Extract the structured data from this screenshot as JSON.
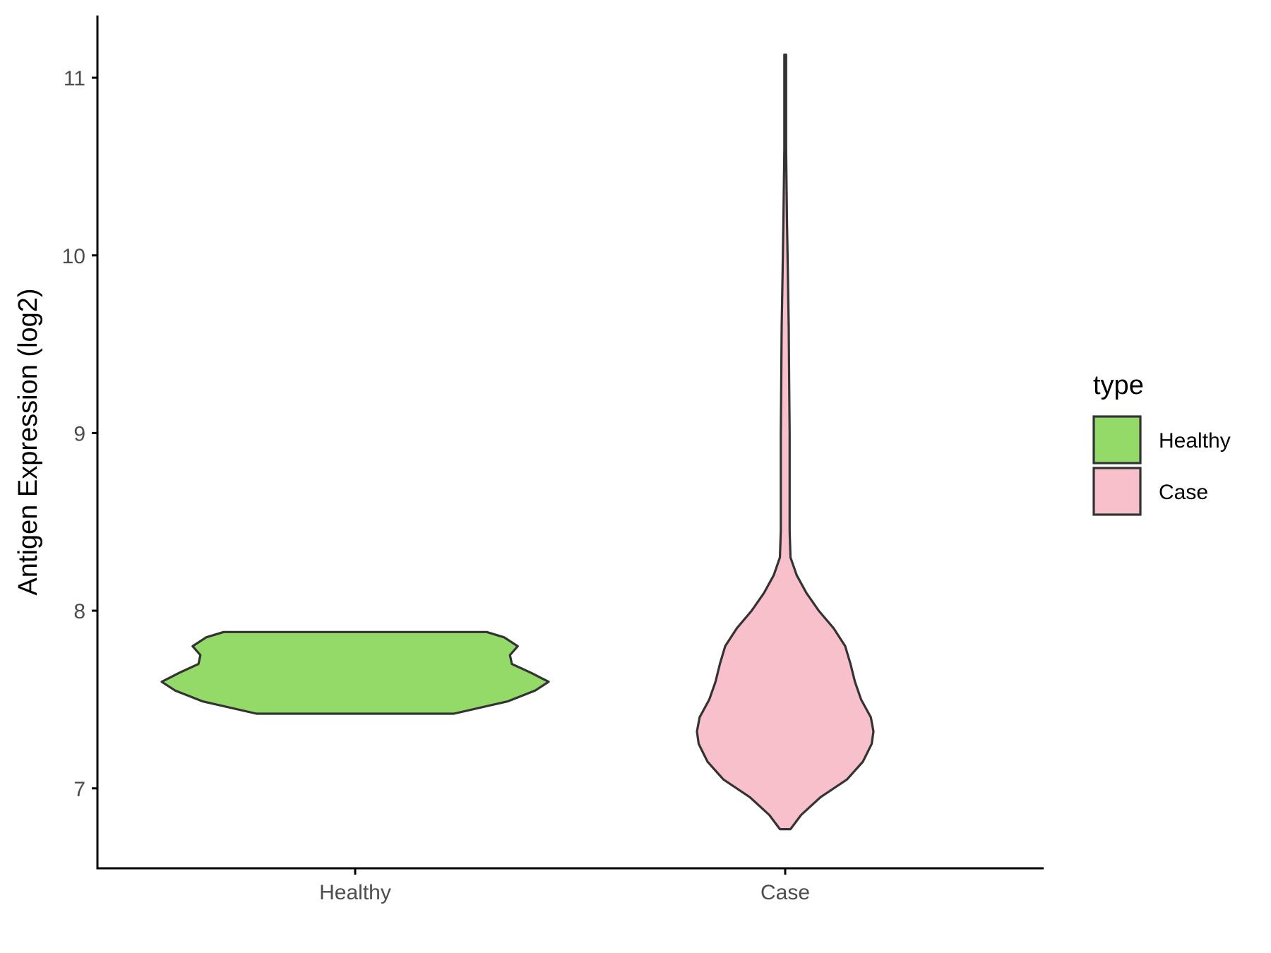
{
  "chart_data": {
    "type": "violin",
    "title": "",
    "xlabel": "",
    "ylabel": "Antigen Expression (log2)",
    "ylim": [
      6.55,
      11.35
    ],
    "yticks": [
      7,
      8,
      9,
      10,
      11
    ],
    "categories": [
      "Healthy",
      "Case"
    ],
    "legend": {
      "title": "type",
      "position": "right",
      "items": [
        {
          "label": "Healthy",
          "color": "#93DA69"
        },
        {
          "label": "Case",
          "color": "#F8C0CB"
        }
      ]
    },
    "grid": false,
    "series": [
      {
        "name": "Healthy",
        "color": "#93DA69",
        "min": 7.42,
        "max": 7.88,
        "density": [
          [
            7.42,
            0.51
          ],
          [
            7.49,
            0.79
          ],
          [
            7.55,
            0.93
          ],
          [
            7.6,
            1.0
          ],
          [
            7.65,
            0.91
          ],
          [
            7.7,
            0.81
          ],
          [
            7.75,
            0.8
          ],
          [
            7.8,
            0.84
          ],
          [
            7.85,
            0.77
          ],
          [
            7.88,
            0.68
          ]
        ]
      },
      {
        "name": "Case",
        "color": "#F8C0CB",
        "min": 6.77,
        "max": 11.13,
        "density": [
          [
            6.77,
            0.06
          ],
          [
            6.85,
            0.18
          ],
          [
            6.95,
            0.4
          ],
          [
            7.05,
            0.7
          ],
          [
            7.15,
            0.88
          ],
          [
            7.25,
            0.98
          ],
          [
            7.32,
            1.0
          ],
          [
            7.4,
            0.97
          ],
          [
            7.5,
            0.86
          ],
          [
            7.6,
            0.79
          ],
          [
            7.7,
            0.74
          ],
          [
            7.8,
            0.68
          ],
          [
            7.9,
            0.55
          ],
          [
            8.0,
            0.38
          ],
          [
            8.1,
            0.24
          ],
          [
            8.2,
            0.13
          ],
          [
            8.3,
            0.06
          ],
          [
            8.45,
            0.05
          ],
          [
            8.7,
            0.05
          ],
          [
            9.0,
            0.05
          ],
          [
            9.3,
            0.045
          ],
          [
            9.6,
            0.04
          ],
          [
            9.9,
            0.03
          ],
          [
            10.2,
            0.02
          ],
          [
            10.6,
            0.01
          ],
          [
            11.0,
            0.01
          ],
          [
            11.13,
            0.01
          ]
        ]
      }
    ]
  }
}
